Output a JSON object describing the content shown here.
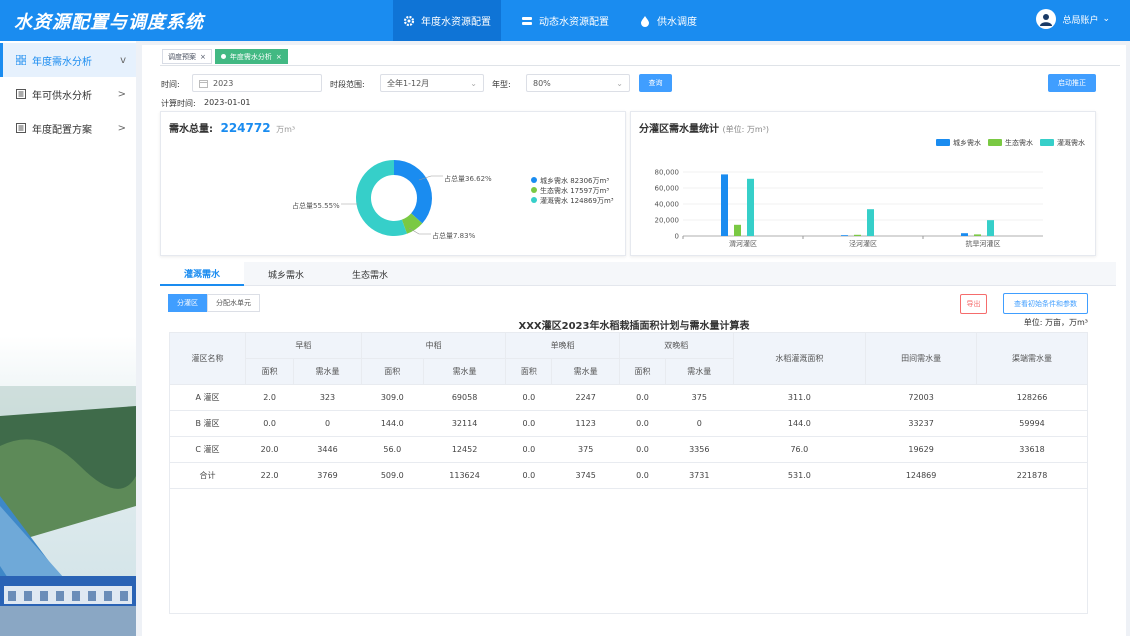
{
  "app": {
    "title": "水资源配置与调度系统"
  },
  "nav": [
    {
      "label": "年度水资源配置",
      "icon": "gear-icon"
    },
    {
      "label": "动态水资源配置",
      "icon": "database-icon"
    },
    {
      "label": "供水调度",
      "icon": "water-drop-icon"
    }
  ],
  "user": {
    "label": "总局账户"
  },
  "sidebar": {
    "items": [
      {
        "label": "年度需水分析",
        "chev": "v"
      },
      {
        "label": "年可供水分析",
        "chev": ">"
      },
      {
        "label": "年度配置方案",
        "chev": ">"
      }
    ]
  },
  "tags": [
    {
      "label": "调度预案"
    },
    {
      "label": "年度需水分析"
    }
  ],
  "filters": {
    "time_label": "时间:",
    "time_value": "2023",
    "range_label": "时段范围:",
    "range_value": "全年1-12月",
    "year_type_label": "年型:",
    "year_type_value": "80%",
    "query_button": "查询",
    "start_button": "启动推正",
    "calc_time_label": "计算时间:",
    "calc_time_value": "2023-01-01"
  },
  "total": {
    "label": "需水总量:",
    "value": "224772",
    "unit": "万m³"
  },
  "donut": {
    "labels": [
      "占总量36.62%",
      "占总量7.83%",
      "占总量55.55%"
    ],
    "legend": [
      "城乡需水  82306万m³",
      "生态需水  17597万m³",
      "灌溉需水  124869万m³"
    ]
  },
  "chart_data": {
    "type": "bar",
    "title": "分灌区需水量统计",
    "subtitle": "(单位:  万m³)",
    "categories": [
      "渭河灌区",
      "泾河灌区",
      "抗旱河灌区"
    ],
    "series": [
      {
        "name": "城乡需水",
        "color": "#1a8cf0",
        "values": [
          77000,
          1000,
          3500
        ]
      },
      {
        "name": "生态需水",
        "color": "#7ac943",
        "values": [
          14000,
          1500,
          2000
        ]
      },
      {
        "name": "灌溉需水",
        "color": "#36cfc9",
        "values": [
          71500,
          33500,
          19800
        ]
      }
    ],
    "yticks": [
      "80,000",
      "60,000",
      "40,000",
      "20,000",
      "0"
    ],
    "ylim": [
      0,
      80000
    ]
  },
  "donut_data": {
    "values": [
      82306,
      17597,
      124869
    ],
    "colors": [
      "#1a8cf0",
      "#7ac943",
      "#36cfc9"
    ]
  },
  "tabs": [
    "灌溉需水",
    "城乡需水",
    "生态需水"
  ],
  "segment": [
    "分灌区",
    "分配水单元"
  ],
  "actions": {
    "export": "导出",
    "view_params": "查看初始条件和参数"
  },
  "table": {
    "title": "XXX灌区2023年水稻栽插面积计划与需水量计算表",
    "unit": "单位:  万亩，万m³",
    "col_name": "灌区名称",
    "groups": [
      "早稻",
      "中稻",
      "单晚稻",
      "双晚稻"
    ],
    "sub": [
      "面积",
      "需水量"
    ],
    "extra": [
      "水稻灌溉面积",
      "田间需水量",
      "渠端需水量"
    ],
    "rows": [
      [
        "A 灌区",
        "2.0",
        "323",
        "309.0",
        "69058",
        "0.0",
        "2247",
        "0.0",
        "375",
        "311.0",
        "72003",
        "128266"
      ],
      [
        "B 灌区",
        "0.0",
        "0",
        "144.0",
        "32114",
        "0.0",
        "1123",
        "0.0",
        "0",
        "144.0",
        "33237",
        "59994"
      ],
      [
        "C 灌区",
        "20.0",
        "3446",
        "56.0",
        "12452",
        "0.0",
        "375",
        "0.0",
        "3356",
        "76.0",
        "19629",
        "33618"
      ],
      [
        "合计",
        "22.0",
        "3769",
        "509.0",
        "113624",
        "0.0",
        "3745",
        "0.0",
        "3731",
        "531.0",
        "124869",
        "221878"
      ]
    ]
  }
}
